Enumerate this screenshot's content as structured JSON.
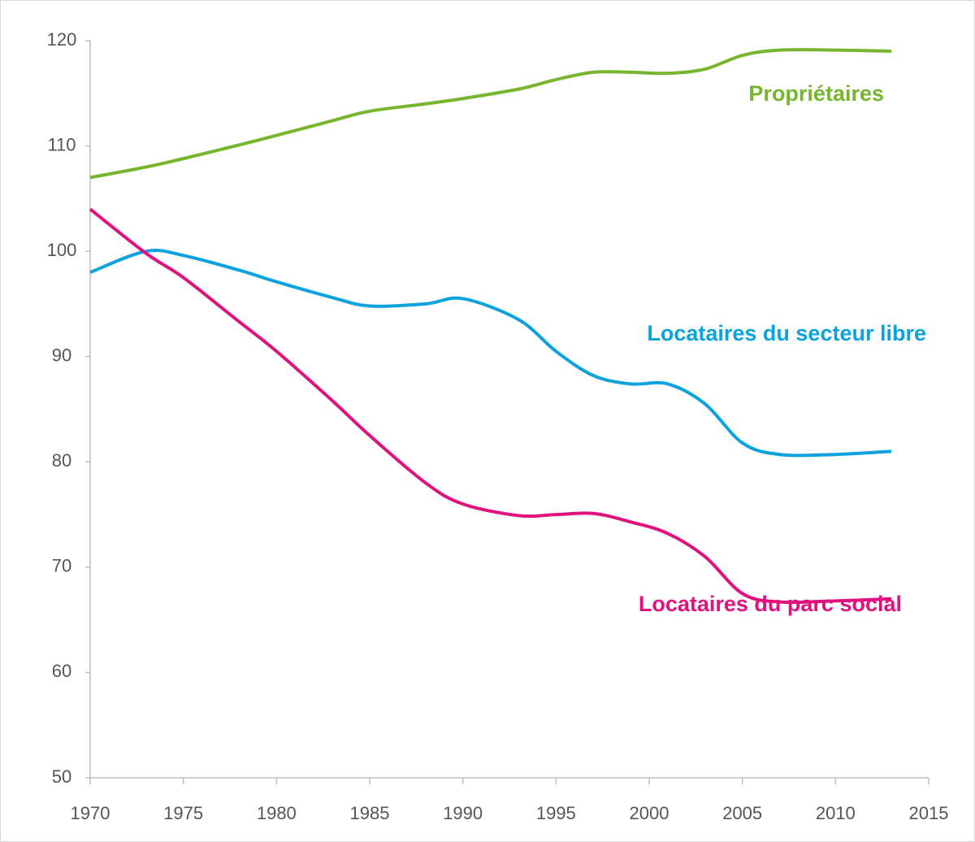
{
  "chart_data": {
    "type": "line",
    "x": [
      1970,
      1973,
      1975,
      1978,
      1980,
      1983,
      1985,
      1988,
      1990,
      1993,
      1995,
      1997,
      1999,
      2001,
      2003,
      2005,
      2007,
      2010,
      2013
    ],
    "series": [
      {
        "name": "Propriétaires",
        "color": "#77b52e",
        "values": [
          107,
          108,
          108.8,
          110.1,
          111,
          112.4,
          113.3,
          114,
          114.5,
          115.4,
          116.3,
          117,
          117,
          116.9,
          117.3,
          118.6,
          119.1,
          119.1,
          119
        ]
      },
      {
        "name": "Locataires du secteur libre",
        "color": "#0ba2de",
        "values": [
          98,
          100,
          99.6,
          98.2,
          97.1,
          95.6,
          94.8,
          95,
          95.5,
          93.5,
          90.5,
          88.2,
          87.4,
          87.4,
          85.5,
          81.8,
          80.7,
          80.7,
          81
        ]
      },
      {
        "name": "Locataires du parc social",
        "color": "#e0137e",
        "values": [
          104,
          99.8,
          97.5,
          93.3,
          90.5,
          85.8,
          82.5,
          78,
          76,
          74.9,
          75,
          75.1,
          74.3,
          73.2,
          71,
          67.5,
          66.7,
          66.8,
          67
        ]
      }
    ],
    "xlim": [
      1970,
      2015
    ],
    "xticks": [
      1970,
      1975,
      1980,
      1985,
      1990,
      1995,
      2000,
      2005,
      2010,
      2015
    ],
    "ylim": [
      50,
      120
    ],
    "yticks": [
      50,
      60,
      70,
      80,
      90,
      100,
      110,
      120
    ]
  }
}
